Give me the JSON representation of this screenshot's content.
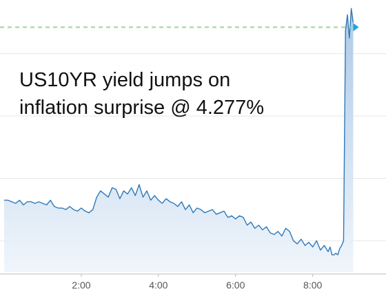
{
  "chart_data": {
    "type": "area",
    "title": "",
    "annotation_lines": [
      "US10YR yield jumps on",
      "inflation surprise @ 4.277%"
    ],
    "xlabel": "",
    "ylabel": "",
    "x_ticks": [
      "2:00",
      "4:00",
      "6:00",
      "8:00"
    ],
    "x_tick_hours": [
      2,
      4,
      6,
      8
    ],
    "xlim_hours": [
      0,
      9.9
    ],
    "ylim": [
      4.12,
      4.29
    ],
    "reference_line_value": 4.277,
    "grid": "horizontal",
    "colors": {
      "line": "#2f78b8",
      "fill_top": "#a8c6e6",
      "fill_bottom": "#eef4fb",
      "reference": "#9ed39e",
      "marker": "#1aa3e8",
      "grid": "#e6e6e6",
      "axis": "#bbbbbb"
    },
    "series": [
      {
        "x": [
          0.0,
          0.1,
          0.2,
          0.3,
          0.4,
          0.5,
          0.6,
          0.7,
          0.8,
          0.9,
          1.0,
          1.1,
          1.2,
          1.3,
          1.4,
          1.5,
          1.6,
          1.7,
          1.8,
          1.9,
          2.0,
          2.1,
          2.2,
          2.3,
          2.4,
          2.5,
          2.6,
          2.7,
          2.8,
          2.9,
          3.0,
          3.1,
          3.2,
          3.3,
          3.4,
          3.5,
          3.6,
          3.7,
          3.8,
          3.9,
          4.0,
          4.1,
          4.2,
          4.3,
          4.4,
          4.5,
          4.6,
          4.7,
          4.8,
          4.9,
          5.0,
          5.1,
          5.2,
          5.3,
          5.4,
          5.5,
          5.6,
          5.7,
          5.8,
          5.9,
          6.0,
          6.1,
          6.2,
          6.3,
          6.4,
          6.5,
          6.6,
          6.7,
          6.8,
          6.9,
          7.0,
          7.1,
          7.2,
          7.3,
          7.4,
          7.5,
          7.6,
          7.7,
          7.8,
          7.9,
          8.0,
          8.1,
          8.2,
          8.3,
          8.4,
          8.45,
          8.5,
          8.55,
          8.6,
          8.65,
          8.7,
          8.75,
          8.8,
          8.85,
          8.9,
          8.95,
          9.0,
          9.05
        ],
        "y": [
          4.166,
          4.166,
          4.165,
          4.164,
          4.166,
          4.163,
          4.165,
          4.165,
          4.164,
          4.165,
          4.164,
          4.163,
          4.166,
          4.162,
          4.161,
          4.161,
          4.16,
          4.162,
          4.16,
          4.159,
          4.161,
          4.159,
          4.158,
          4.16,
          4.168,
          4.172,
          4.17,
          4.168,
          4.174,
          4.173,
          4.167,
          4.172,
          4.17,
          4.174,
          4.169,
          4.176,
          4.168,
          4.172,
          4.166,
          4.169,
          4.166,
          4.164,
          4.167,
          4.165,
          4.164,
          4.162,
          4.165,
          4.16,
          4.163,
          4.158,
          4.161,
          4.16,
          4.158,
          4.159,
          4.16,
          4.157,
          4.158,
          4.159,
          4.155,
          4.156,
          4.154,
          4.156,
          4.155,
          4.15,
          4.152,
          4.148,
          4.15,
          4.147,
          4.149,
          4.145,
          4.144,
          4.146,
          4.143,
          4.148,
          4.146,
          4.14,
          4.138,
          4.141,
          4.137,
          4.139,
          4.136,
          4.14,
          4.134,
          4.137,
          4.133,
          4.136,
          4.131,
          4.131,
          4.132,
          4.131,
          4.135,
          4.137,
          4.14,
          4.275,
          4.285,
          4.27,
          4.289,
          4.28
        ]
      }
    ]
  }
}
